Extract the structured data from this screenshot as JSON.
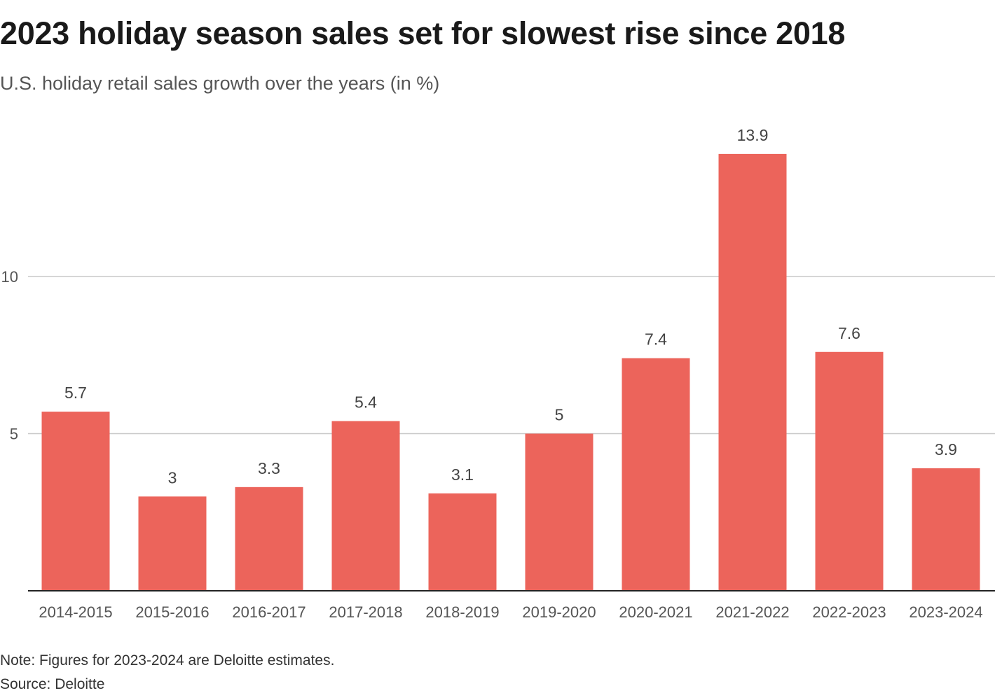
{
  "chart_data": {
    "type": "bar",
    "title": "2023 holiday season sales set for slowest rise since 2018",
    "subtitle": "U.S. holiday retail sales growth over the years (in %)",
    "categories": [
      "2014-2015",
      "2015-2016",
      "2016-2017",
      "2017-2018",
      "2018-2019",
      "2019-2020",
      "2020-2021",
      "2021-2022",
      "2022-2023",
      "2023-2024"
    ],
    "values": [
      5.7,
      3,
      3.3,
      5.4,
      3.1,
      5,
      7.4,
      13.9,
      7.6,
      3.9
    ],
    "value_labels": [
      "5.7",
      "3",
      "3.3",
      "5.4",
      "3.1",
      "5",
      "7.4",
      "13.9",
      "7.6",
      "3.9"
    ],
    "xlabel": "",
    "ylabel": "",
    "ylim": [
      0,
      14
    ],
    "yticks": [
      5,
      10
    ],
    "ytick_labels": [
      "5",
      "10"
    ],
    "grid": "horizontal",
    "bar_color": "#ec645b",
    "grid_color": "#c8c8c8",
    "axis_color": "#222222",
    "note": "Note: Figures for 2023-2024 are Deloitte estimates.",
    "source": "Source: Deloitte"
  }
}
